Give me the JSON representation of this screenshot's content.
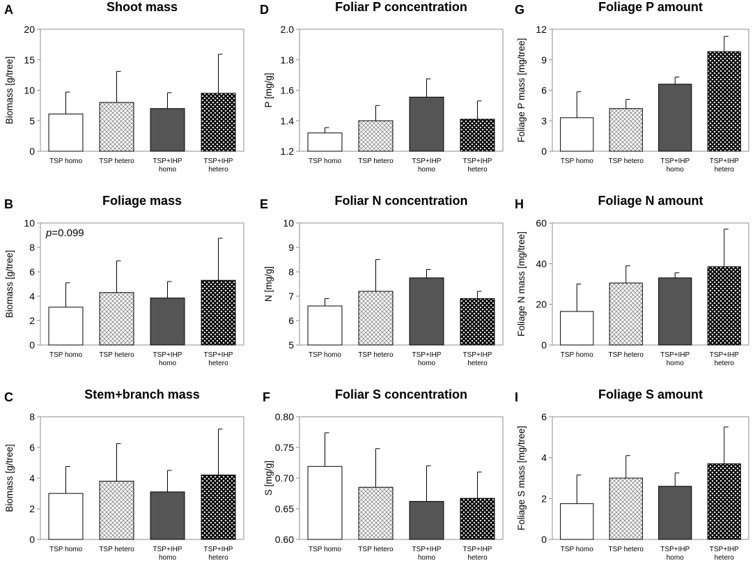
{
  "chart_data": [
    {
      "panel": "A",
      "type": "bar",
      "title": "Shoot mass",
      "ylabel": "Biomass [g/tree]",
      "ylim": [
        0,
        20
      ],
      "yticks": [
        "0",
        "5",
        "10",
        "15",
        "20"
      ],
      "categories": [
        [
          "TSP homo"
        ],
        [
          "TSP hetero"
        ],
        [
          "TSP+IHP",
          "homo"
        ],
        [
          "TSP+IHP",
          "hetero"
        ]
      ],
      "values": [
        6.1,
        8.0,
        7.0,
        9.5
      ],
      "errors": [
        3.6,
        5.1,
        2.6,
        6.4
      ]
    },
    {
      "panel": "B",
      "type": "bar",
      "title": "Foliage mass",
      "ylabel": "Biomass [g/tree]",
      "ylim": [
        0,
        10
      ],
      "yticks": [
        "0",
        "2",
        "4",
        "6",
        "8",
        "10"
      ],
      "categories": [
        [
          "TSP homo"
        ],
        [
          "TSP hetero"
        ],
        [
          "TSP+IHP",
          "homo"
        ],
        [
          "TSP+IHP",
          "hetero"
        ]
      ],
      "values": [
        3.1,
        4.3,
        3.85,
        5.3
      ],
      "errors": [
        2.0,
        2.6,
        1.35,
        3.45
      ],
      "annotation": {
        "p": "p",
        "rest": "=0.099"
      }
    },
    {
      "panel": "C",
      "type": "bar",
      "title": "Stem+branch mass",
      "ylabel": "Biomass [g/tree]",
      "ylim": [
        0,
        8
      ],
      "yticks": [
        "0",
        "2",
        "4",
        "6",
        "8"
      ],
      "categories": [
        [
          "TSP homo"
        ],
        [
          "TSP hetero"
        ],
        [
          "TSP+IHP",
          "homo"
        ],
        [
          "TSP+IHP",
          "hetero"
        ]
      ],
      "values": [
        3.0,
        3.8,
        3.1,
        4.2
      ],
      "errors": [
        1.75,
        2.45,
        1.4,
        3.0
      ]
    },
    {
      "panel": "D",
      "type": "bar",
      "title": "Foliar P concentration",
      "ylabel": "P  [mg/g]",
      "ylim": [
        1.2,
        2.0
      ],
      "yticks": [
        "1.2",
        "1.4",
        "1.6",
        "1.8",
        "2.0"
      ],
      "categories": [
        [
          "TSP homo"
        ],
        [
          "TSP hetero"
        ],
        [
          "TSP+IHP",
          "homo"
        ],
        [
          "TSP+IHP",
          "hetero"
        ]
      ],
      "values": [
        1.32,
        1.4,
        1.555,
        1.41
      ],
      "errors": [
        0.035,
        0.1,
        0.12,
        0.12
      ]
    },
    {
      "panel": "E",
      "type": "bar",
      "title": "Foliar N concentration",
      "ylabel": "N  [mg/g]",
      "ylim": [
        5,
        10
      ],
      "yticks": [
        "5",
        "6",
        "7",
        "8",
        "9",
        "10"
      ],
      "categories": [
        [
          "TSP homo"
        ],
        [
          "TSP hetero"
        ],
        [
          "TSP+IHP",
          "homo"
        ],
        [
          "TSP+IHP",
          "hetero"
        ]
      ],
      "values": [
        6.6,
        7.2,
        7.75,
        6.9
      ],
      "errors": [
        0.3,
        1.3,
        0.35,
        0.3
      ]
    },
    {
      "panel": "F",
      "type": "bar",
      "title": "Foliar S concentration",
      "ylabel": "S  [mg/g]",
      "ylim": [
        0.6,
        0.8
      ],
      "yticks": [
        "0.60",
        "0.65",
        "0.70",
        "0.75",
        "0.80"
      ],
      "categories": [
        [
          "TSP homo"
        ],
        [
          "TSP hetero"
        ],
        [
          "TSP+IHP",
          "homo"
        ],
        [
          "TSP+IHP",
          "hetero"
        ]
      ],
      "values": [
        0.719,
        0.685,
        0.662,
        0.667
      ],
      "errors": [
        0.055,
        0.063,
        0.058,
        0.043
      ]
    },
    {
      "panel": "G",
      "type": "bar",
      "title": "Foliage P amount",
      "ylabel": "Foliage P mass [mg/tree]",
      "ylim": [
        0,
        12
      ],
      "yticks": [
        "0",
        "3",
        "6",
        "9",
        "12"
      ],
      "categories": [
        [
          "TSP homo"
        ],
        [
          "TSP hetero"
        ],
        [
          "TSP+IHP",
          "homo"
        ],
        [
          "TSP+IHP",
          "hetero"
        ]
      ],
      "values": [
        3.3,
        4.2,
        6.6,
        9.8
      ],
      "errors": [
        2.55,
        0.9,
        0.7,
        1.5
      ]
    },
    {
      "panel": "H",
      "type": "bar",
      "title": "Foliage N amount",
      "ylabel": "Foliage N mass [mg/tree]",
      "ylim": [
        0,
        60
      ],
      "yticks": [
        "0",
        "20",
        "40",
        "60"
      ],
      "categories": [
        [
          "TSP homo"
        ],
        [
          "TSP hetero"
        ],
        [
          "TSP+IHP",
          "homo"
        ],
        [
          "TSP+IHP",
          "hetero"
        ]
      ],
      "values": [
        16.5,
        30.5,
        33.0,
        38.5
      ],
      "errors": [
        13.5,
        8.5,
        2.5,
        18.5
      ]
    },
    {
      "panel": "I",
      "type": "bar",
      "title": "Foliage S amount",
      "ylabel": "Foliage S mass [mg/tree]",
      "ylim": [
        0,
        6
      ],
      "yticks": [
        "0",
        "2",
        "4",
        "6"
      ],
      "categories": [
        [
          "TSP homo"
        ],
        [
          "TSP hetero"
        ],
        [
          "TSP+IHP",
          "homo"
        ],
        [
          "TSP+IHP",
          "hetero"
        ]
      ],
      "values": [
        1.75,
        3.0,
        2.6,
        3.7
      ],
      "errors": [
        1.4,
        1.1,
        0.65,
        1.8
      ]
    }
  ],
  "legend_styles": [
    "white",
    "light-crosshatch",
    "dark-gray",
    "black-crosshatch"
  ]
}
